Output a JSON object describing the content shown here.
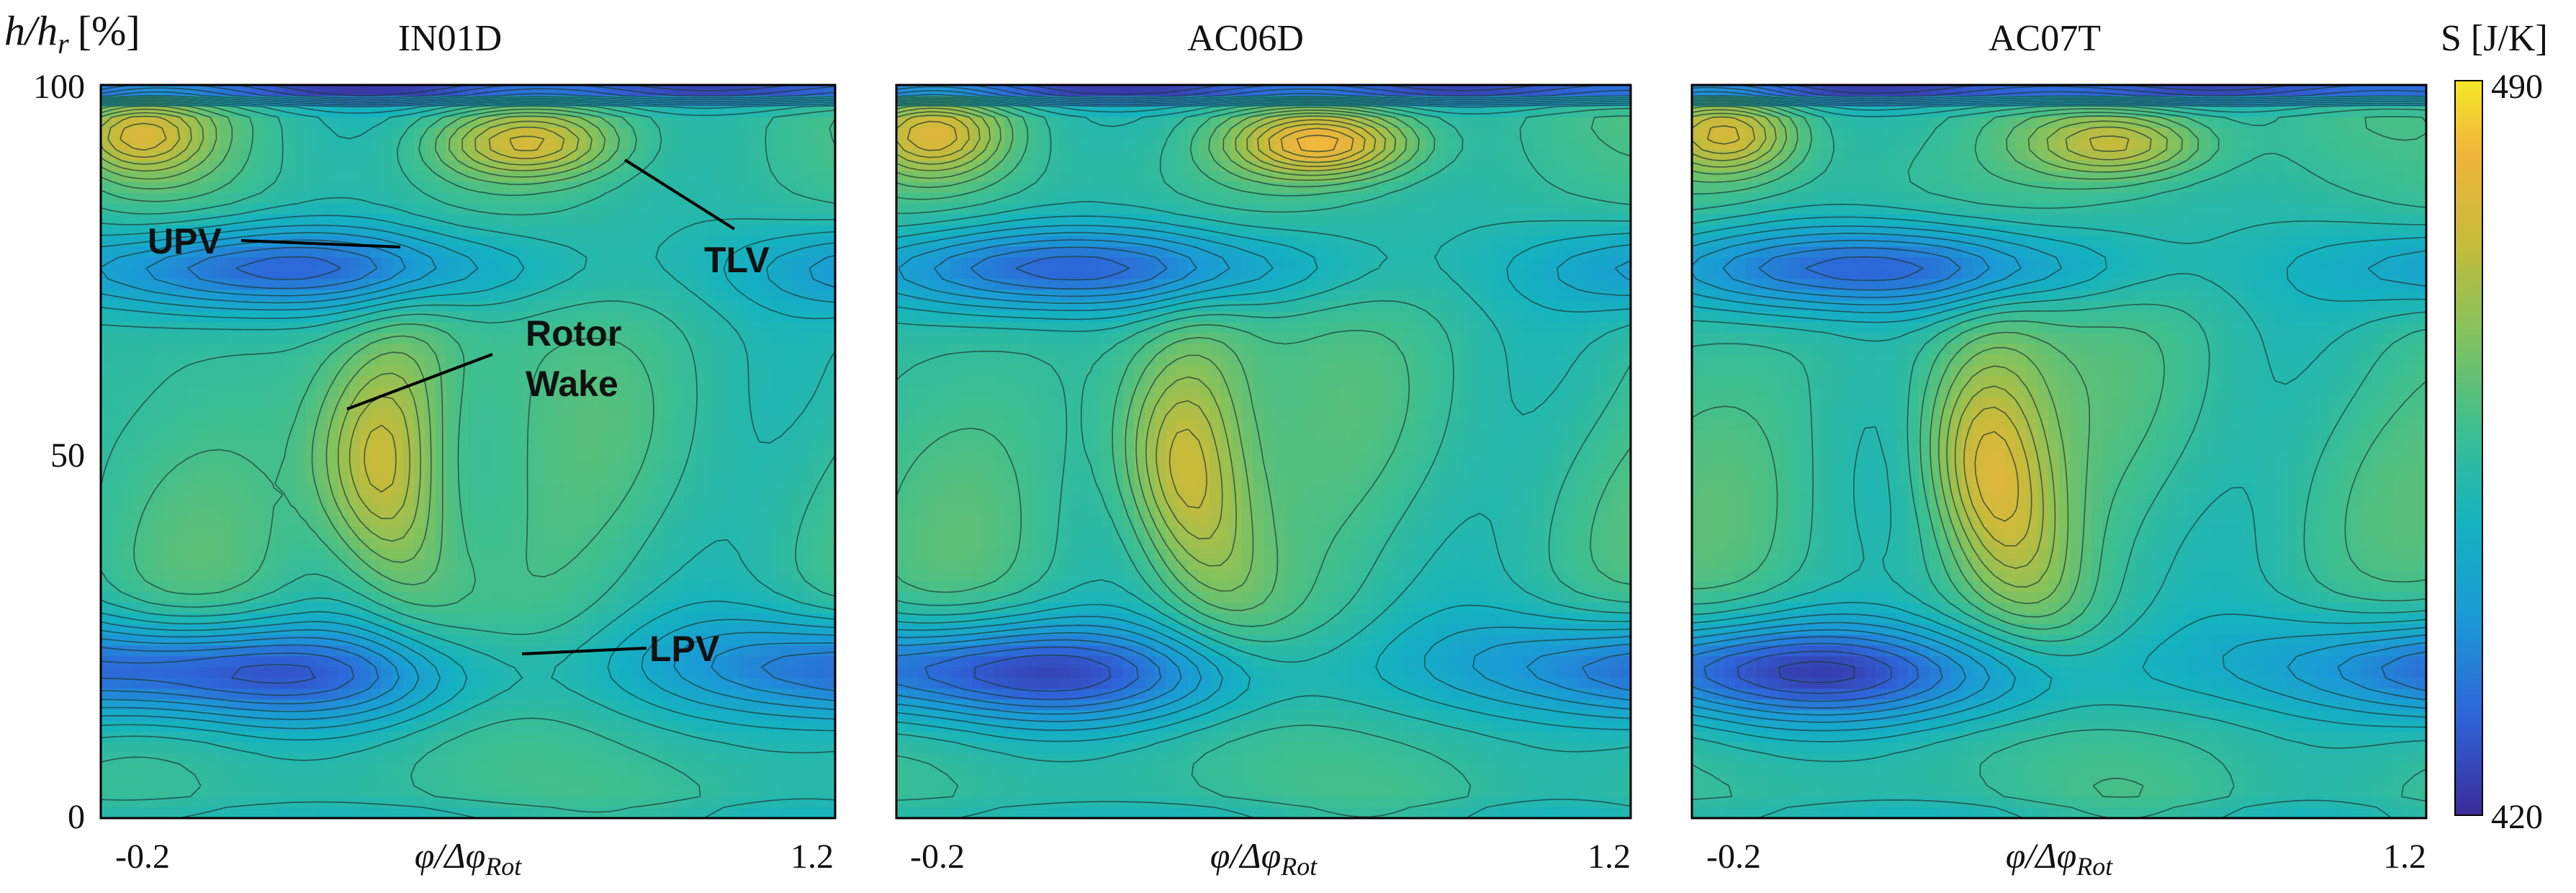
{
  "chart_data": {
    "type": "heatmap",
    "colormap": [
      "#3b2b98",
      "#2f63d8",
      "#1b9ad6",
      "#15b3bf",
      "#3fbf8e",
      "#86c25b",
      "#c7bb3a",
      "#f0b43c",
      "#f5e826"
    ],
    "colorbar": {
      "title": "S [J/K]",
      "min": 420,
      "max": 490,
      "min_label": "420",
      "max_label": "490"
    },
    "y_axis": {
      "label_main": "h/h",
      "label_sub": "r",
      "label_unit": "[%]",
      "range": [
        0,
        100
      ],
      "ticks": [
        "100",
        "50",
        "0"
      ]
    },
    "x_axis": {
      "label_main": "φ/Δφ",
      "label_sub": "Rot",
      "range": [
        -0.2,
        1.2
      ],
      "tick_left": "-0.2",
      "tick_right": "1.2"
    },
    "panels": [
      {
        "title": "IN01D",
        "variant": 1
      },
      {
        "title": "AC06D",
        "variant": 2
      },
      {
        "title": "AC07T",
        "variant": 3
      }
    ],
    "features": [
      {
        "name": "tip-leakage-vortex",
        "label": "TLV"
      },
      {
        "name": "upper-passage-vortex",
        "label": "UPV"
      },
      {
        "name": "rotor-wake",
        "label_line1": "Rotor",
        "label_line2": "Wake"
      },
      {
        "name": "lower-passage-vortex",
        "label": "LPV"
      }
    ]
  }
}
